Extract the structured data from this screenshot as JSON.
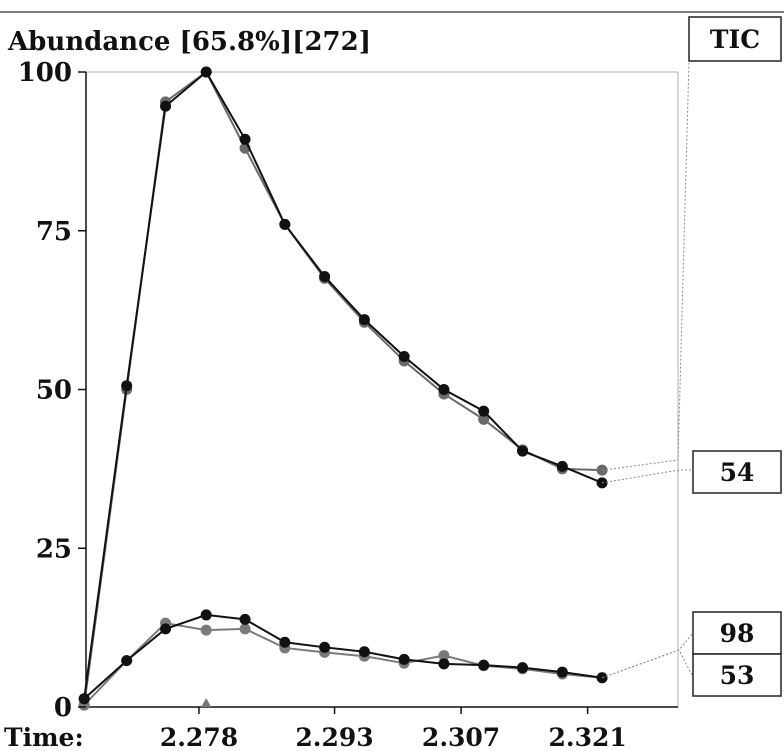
{
  "chart_data": {
    "type": "line",
    "title": "Abundance [65.8%][272]",
    "xlabel": "Time:",
    "ylabel": "",
    "ylim": [
      0,
      100
    ],
    "xlim": [
      2.2655,
      2.331
    ],
    "yticks": [
      0,
      25,
      50,
      75,
      100
    ],
    "xticks": [
      2.278,
      2.293,
      2.307,
      2.321
    ],
    "xtick_labels": [
      "2.278",
      "2.293",
      "2.307",
      "2.321"
    ],
    "grid": false,
    "legend": "right",
    "x": [
      2.2653,
      2.27,
      2.2743,
      2.2788,
      2.2831,
      2.2875,
      2.2919,
      2.2963,
      2.3007,
      2.3051,
      2.3095,
      2.3138,
      2.3182,
      2.3226
    ],
    "series": [
      {
        "name": "TIC",
        "color": "#6a6a6a",
        "values": [
          0.3,
          50.0,
          95.3,
          100.0,
          88.0,
          76.0,
          67.5,
          60.6,
          54.5,
          49.3,
          45.3,
          40.5,
          37.5,
          37.3
        ]
      },
      {
        "name": "54",
        "color": "#111111",
        "values": [
          1.3,
          50.6,
          94.6,
          100.0,
          89.4,
          76.0,
          67.8,
          61.0,
          55.2,
          50.0,
          46.6,
          40.3,
          37.9,
          35.3
        ]
      },
      {
        "name": "98",
        "color": "#7a7a7a",
        "values": [
          0.3,
          7.3,
          13.2,
          12.1,
          12.3,
          9.3,
          8.6,
          8.0,
          6.9,
          8.1,
          6.5,
          6.0,
          5.2,
          4.6
        ]
      },
      {
        "name": "53",
        "color": "#111111",
        "values": [
          1.3,
          7.3,
          12.3,
          14.5,
          13.8,
          10.2,
          9.4,
          8.7,
          7.5,
          6.8,
          6.6,
          6.2,
          5.5,
          4.6
        ]
      }
    ]
  }
}
